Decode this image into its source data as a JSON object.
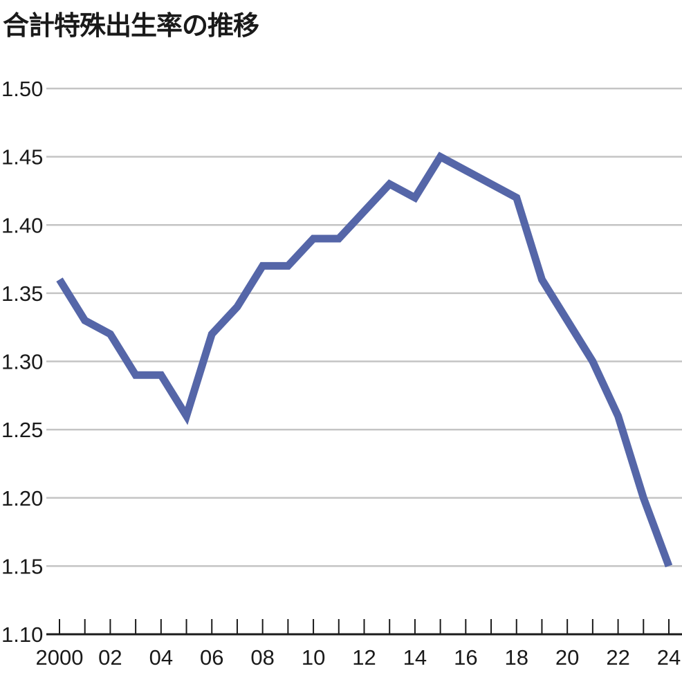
{
  "chart_data": {
    "type": "line",
    "title": "合計特殊出生率の推移",
    "xlabel": "",
    "ylabel": "",
    "x": [
      2000,
      2001,
      2002,
      2003,
      2004,
      2005,
      2006,
      2007,
      2008,
      2009,
      2010,
      2011,
      2012,
      2013,
      2014,
      2015,
      2016,
      2017,
      2018,
      2019,
      2020,
      2021,
      2022,
      2023,
      2024
    ],
    "values": [
      1.36,
      1.33,
      1.32,
      1.29,
      1.29,
      1.26,
      1.32,
      1.34,
      1.37,
      1.37,
      1.39,
      1.39,
      1.41,
      1.43,
      1.42,
      1.45,
      1.44,
      1.43,
      1.42,
      1.36,
      1.33,
      1.3,
      1.26,
      1.2,
      1.15
    ],
    "x_tick_labels": [
      "2000",
      "02",
      "04",
      "06",
      "08",
      "10",
      "12",
      "14",
      "16",
      "18",
      "20",
      "22",
      "24"
    ],
    "y_tick_labels": [
      "1.10",
      "1.15",
      "1.20",
      "1.25",
      "1.30",
      "1.35",
      "1.40",
      "1.45",
      "1.50"
    ],
    "ylim": [
      1.1,
      1.5
    ],
    "grid": true,
    "line_color": "#5566a8",
    "grid_color": "#c4c4c4"
  }
}
